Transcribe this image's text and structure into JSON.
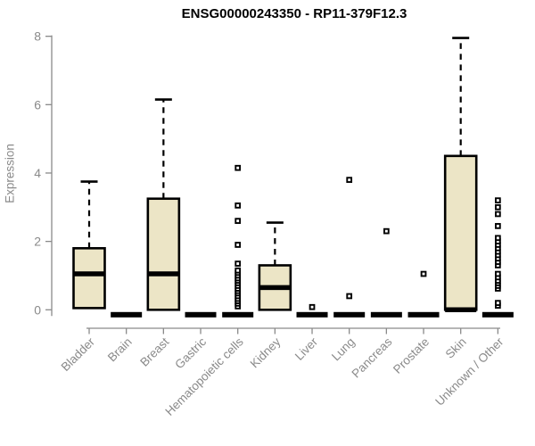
{
  "chart": {
    "title": "ENSG00000243350 - RP11-379F12.3",
    "ylabel": "Expression"
  },
  "chart_data": {
    "type": "boxplot",
    "title": "ENSG00000243350 - RP11-379F12.3",
    "xlabel": "",
    "ylabel": "Expression",
    "ylim": [
      0,
      8
    ],
    "yticks": [
      0,
      2,
      4,
      6,
      8
    ],
    "grid": false,
    "categories": [
      "Bladder",
      "Brain",
      "Breast",
      "Gastric",
      "Hematopoietic cells",
      "Kidney",
      "Liver",
      "Lung",
      "Pancreas",
      "Prostate",
      "Skin",
      "Unknown / Other"
    ],
    "boxes": [
      {
        "category": "Bladder",
        "whisker_low": 0.05,
        "q1": 0.05,
        "median": 1.05,
        "q3": 1.8,
        "whisker_high": 3.75,
        "outliers": []
      },
      {
        "category": "Brain",
        "whisker_low": 0,
        "q1": 0,
        "median": 0,
        "q3": 0,
        "whisker_high": 0,
        "outliers": []
      },
      {
        "category": "Breast",
        "whisker_low": 0,
        "q1": 0,
        "median": 1.05,
        "q3": 3.25,
        "whisker_high": 6.15,
        "outliers": []
      },
      {
        "category": "Gastric",
        "whisker_low": 0,
        "q1": 0,
        "median": 0,
        "q3": 0,
        "whisker_high": 0,
        "outliers": []
      },
      {
        "category": "Hematopoietic cells",
        "whisker_low": 0,
        "q1": 0,
        "median": 0,
        "q3": 0,
        "whisker_high": 0,
        "outliers": [
          0.1,
          0.18,
          0.25,
          0.32,
          0.4,
          0.48,
          0.55,
          0.62,
          0.7,
          0.78,
          0.85,
          0.92,
          1.0,
          1.08,
          1.15,
          1.35,
          1.9,
          2.6,
          3.05,
          4.15
        ]
      },
      {
        "category": "Kidney",
        "whisker_low": 0,
        "q1": 0,
        "median": 0.65,
        "q3": 1.3,
        "whisker_high": 2.55,
        "outliers": []
      },
      {
        "category": "Liver",
        "whisker_low": 0,
        "q1": 0,
        "median": 0,
        "q3": 0,
        "whisker_high": 0,
        "outliers": [
          0.08
        ]
      },
      {
        "category": "Lung",
        "whisker_low": 0,
        "q1": 0,
        "median": 0,
        "q3": 0,
        "whisker_high": 0,
        "outliers": [
          0.4,
          3.8
        ]
      },
      {
        "category": "Pancreas",
        "whisker_low": 0,
        "q1": 0,
        "median": 0,
        "q3": 0,
        "whisker_high": 0,
        "outliers": [
          2.3
        ]
      },
      {
        "category": "Prostate",
        "whisker_low": 0,
        "q1": 0,
        "median": 0,
        "q3": 0,
        "whisker_high": 0,
        "outliers": [
          1.05
        ]
      },
      {
        "category": "Skin",
        "whisker_low": 0,
        "q1": 0,
        "median": 0,
        "q3": 4.5,
        "whisker_high": 7.95,
        "outliers": []
      },
      {
        "category": "Unknown / Other",
        "whisker_low": 0,
        "q1": 0,
        "median": 0,
        "q3": 0,
        "whisker_high": 0,
        "outliers": [
          0.12,
          0.2,
          0.62,
          0.7,
          0.78,
          0.85,
          0.95,
          1.05,
          1.3,
          1.4,
          1.5,
          1.6,
          1.7,
          1.8,
          1.9,
          2.0,
          2.1,
          2.45,
          2.8,
          3.0,
          3.2
        ]
      }
    ],
    "colors": {
      "box_fill": "#ECE5C6",
      "box_border": "#000000",
      "median": "#000000",
      "whisker": "#000000",
      "outlier_stroke": "#000000",
      "outlier_fill": "#ffffff",
      "axis": "#8a8a8a",
      "tick_text": "#8a8a8a",
      "title_text": "#000000"
    },
    "legend": null
  }
}
